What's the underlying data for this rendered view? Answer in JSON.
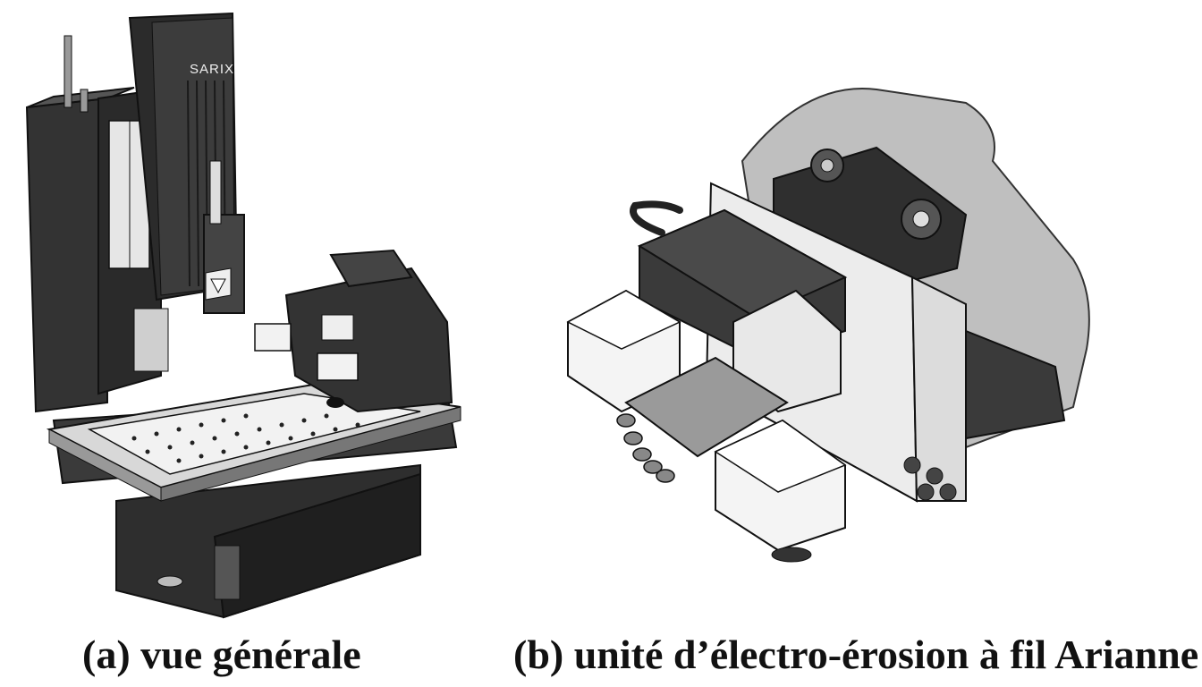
{
  "figure": {
    "panel_a": {
      "caption": "(a) vue générale",
      "brand_text": "SARIX"
    },
    "panel_b": {
      "caption": "(b) unité d’électro-érosion à fil Arianne"
    }
  }
}
